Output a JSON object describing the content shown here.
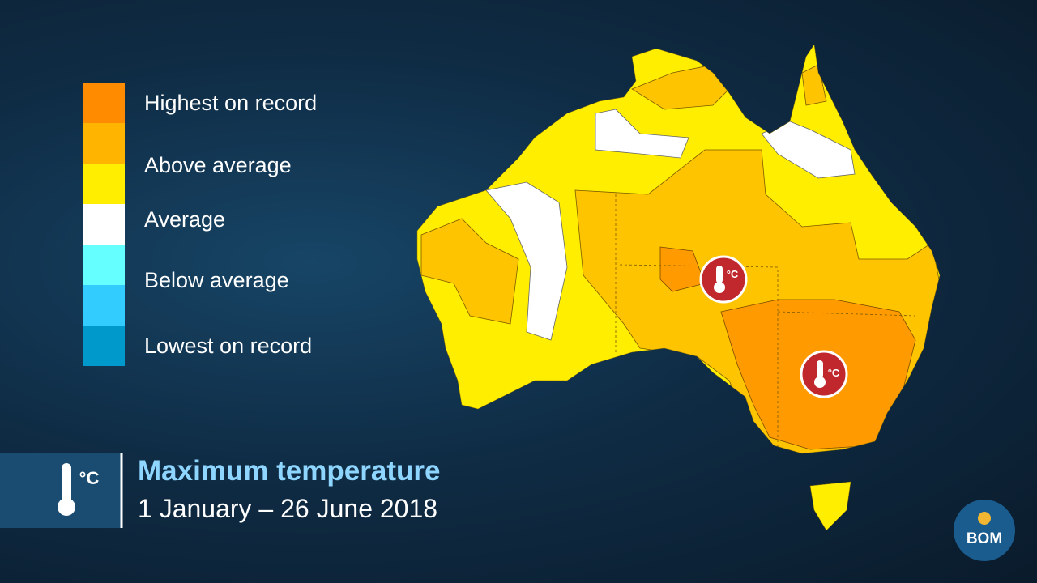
{
  "title": "Maximum temperature",
  "subtitle": "1 January – 26 June 2018",
  "icon_text": "°C",
  "logo": "BOM",
  "legend": {
    "swatches": [
      "#ff8c00",
      "#ffb400",
      "#ffee00",
      "#ffffff",
      "#66ffff",
      "#33ccff",
      "#0099cc"
    ],
    "labels": [
      "Highest on record",
      "Above average",
      "Average",
      "Below average",
      "Lowest on record"
    ]
  }
}
